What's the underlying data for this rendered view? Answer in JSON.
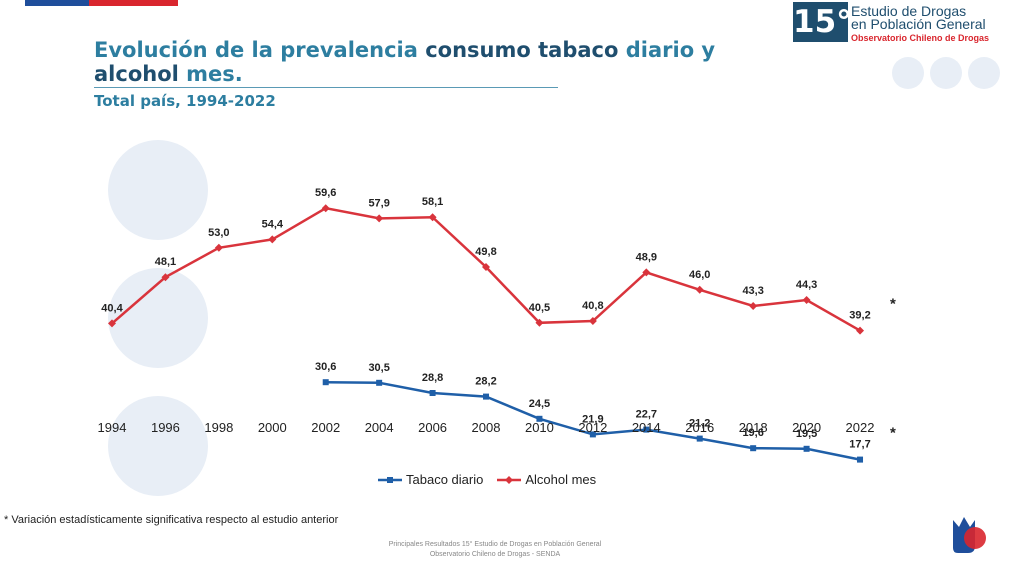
{
  "header": {
    "title_parts": [
      {
        "text": "Evolución de la prevalencia ",
        "hl": true
      },
      {
        "text": "consumo tabaco ",
        "hl": false
      },
      {
        "text": "diario y ",
        "hl": true
      },
      {
        "text": "alcohol ",
        "hl": false
      },
      {
        "text": "mes.",
        "hl": true
      }
    ],
    "subtitle": "Total país, 1994-2022"
  },
  "logo": {
    "number": "15°",
    "line1": "Estudio de Drogas",
    "line2": "en Población General",
    "line3": "Observatorio Chileno de Drogas"
  },
  "colors": {
    "tabaco": "#1f5fa8",
    "alcohol": "#d9343c",
    "title_dark": "#1f4e6e",
    "title_accent": "#2d7ea0",
    "watermark": "#e8eef6"
  },
  "chart_data": {
    "type": "line",
    "x": [
      "1994",
      "1996",
      "1998",
      "2000",
      "2002",
      "2004",
      "2006",
      "2008",
      "2010",
      "2012",
      "2014",
      "2016",
      "2018",
      "2020",
      "2022"
    ],
    "series": [
      {
        "name": "Tabaco diario",
        "values": [
          null,
          null,
          null,
          null,
          30.6,
          30.5,
          28.8,
          28.2,
          24.5,
          21.9,
          22.7,
          21.2,
          19.6,
          19.5,
          17.7
        ],
        "labels": [
          "",
          "",
          "",
          "",
          "30,6",
          "30,5",
          "28,8",
          "28,2",
          "24,5",
          "21,9",
          "22,7",
          "21,2",
          "19,6",
          "19,5",
          "17,7"
        ],
        "marker": "square",
        "annotation": "*"
      },
      {
        "name": "Alcohol mes",
        "values": [
          40.4,
          48.1,
          53.0,
          54.4,
          59.6,
          57.9,
          58.1,
          49.8,
          40.5,
          40.8,
          48.9,
          46.0,
          43.3,
          44.3,
          39.2
        ],
        "labels": [
          "40,4",
          "48,1",
          "53,0",
          "54,4",
          "59,6",
          "57,9",
          "58,1",
          "49,8",
          "40,5",
          "40,8",
          "48,9",
          "46,0",
          "43,3",
          "44,3",
          "39,2"
        ],
        "marker": "diamond",
        "annotation": "*"
      }
    ],
    "grid": false,
    "legend": "bottom-center"
  },
  "footnote": "* Variación estadísticamente significativa respecto al estudio anterior",
  "footer": {
    "line1": "Principales Resultados 15° Estudio de Drogas en Población General",
    "line2": "Observatorio Chileno de Drogas - SENDA"
  }
}
